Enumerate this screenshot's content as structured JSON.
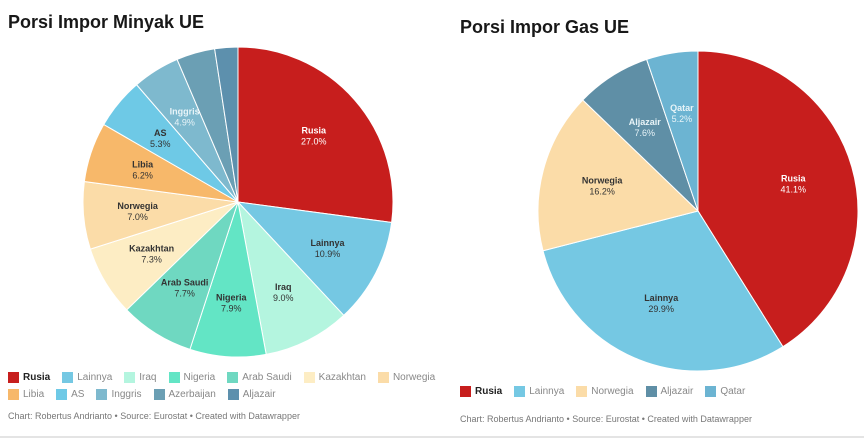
{
  "chart_data": [
    {
      "id": "oil",
      "type": "pie",
      "title": "Porsi Impor Minyak UE",
      "slices": [
        {
          "label": "Rusia",
          "value": 27.0,
          "value_label": "27.0%",
          "color": "#c71e1d",
          "text_color": "#ffffff",
          "show": true
        },
        {
          "label": "Lainnya",
          "value": 10.9,
          "value_label": "10.9%",
          "color": "#75c8e3",
          "text_color": "#333333",
          "show": true
        },
        {
          "label": "Iraq",
          "value": 9.0,
          "value_label": "9.0%",
          "color": "#b4f5df",
          "text_color": "#333333",
          "show": true
        },
        {
          "label": "Nigeria",
          "value": 7.9,
          "value_label": "7.9%",
          "color": "#63e5c5",
          "text_color": "#333333",
          "show": true
        },
        {
          "label": "Arab Saudi",
          "value": 7.7,
          "value_label": "7.7%",
          "color": "#6fd8c1",
          "text_color": "#333333",
          "show": true
        },
        {
          "label": "Kazakhtan",
          "value": 7.3,
          "value_label": "7.3%",
          "color": "#fdedc4",
          "text_color": "#333333",
          "show": true
        },
        {
          "label": "Norwegia",
          "value": 7.0,
          "value_label": "7.0%",
          "color": "#fbdca8",
          "text_color": "#333333",
          "show": true
        },
        {
          "label": "Libia",
          "value": 6.2,
          "value_label": "6.2%",
          "color": "#f7b86a",
          "text_color": "#333333",
          "show": true
        },
        {
          "label": "AS",
          "value": 5.3,
          "value_label": "5.3%",
          "color": "#6ec9e6",
          "text_color": "#333333",
          "show": true
        },
        {
          "label": "Inggris",
          "value": 4.9,
          "value_label": "4.9%",
          "color": "#7eb9ce",
          "text_color": "#e8f4f8",
          "show": true
        },
        {
          "label": "Azerbaijan",
          "value": 4.0,
          "value_label": "",
          "color": "#6b9fb4",
          "text_color": "#ffffff",
          "show": false
        },
        {
          "label": "Aljazair",
          "value": 2.4,
          "value_label": "",
          "color": "#5d90ad",
          "text_color": "#ffffff",
          "show": false
        }
      ],
      "footer": "Chart: Robertus Andrianto • Source: Eurostat • Created with Datawrapper"
    },
    {
      "id": "gas",
      "type": "pie",
      "title": "Porsi Impor Gas UE",
      "slices": [
        {
          "label": "Rusia",
          "value": 41.1,
          "value_label": "41.1%",
          "color": "#c71e1d",
          "text_color": "#ffffff",
          "show": true
        },
        {
          "label": "Lainnya",
          "value": 29.9,
          "value_label": "29.9%",
          "color": "#75c8e3",
          "text_color": "#333333",
          "show": true
        },
        {
          "label": "Norwegia",
          "value": 16.2,
          "value_label": "16.2%",
          "color": "#fbdca8",
          "text_color": "#333333",
          "show": true
        },
        {
          "label": "Aljazair",
          "value": 7.6,
          "value_label": "7.6%",
          "color": "#5f8fa6",
          "text_color": "#e8f4f8",
          "show": true
        },
        {
          "label": "Qatar",
          "value": 5.2,
          "value_label": "5.2%",
          "color": "#6cb4d2",
          "text_color": "#e8f4f8",
          "show": true
        }
      ],
      "footer": "Chart: Robertus Andrianto • Source: Eurostat • Created with Datawrapper"
    }
  ]
}
